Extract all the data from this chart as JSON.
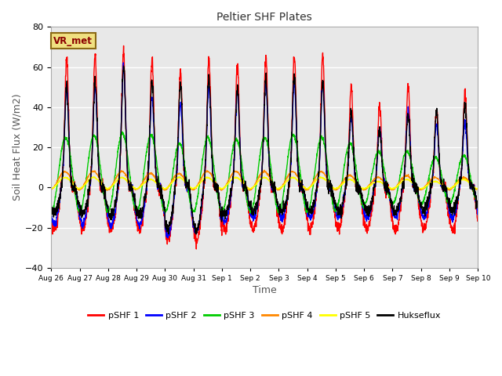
{
  "title": "Peltier SHF Plates",
  "xlabel": "Time",
  "ylabel": "Soil Heat Flux (W/m2)",
  "ylim": [
    -40,
    80
  ],
  "figure_bg": "#ffffff",
  "plot_bg_color": "#e8e8e8",
  "annotation_text": "VR_met",
  "annotation_bg": "#f0e080",
  "annotation_border": "#8B6914",
  "series": [
    {
      "label": "pSHF 1",
      "color": "#ff0000",
      "lw": 1.0
    },
    {
      "label": "pSHF 2",
      "color": "#0000ff",
      "lw": 1.0
    },
    {
      "label": "pSHF 3",
      "color": "#00cc00",
      "lw": 1.0
    },
    {
      "label": "pSHF 4",
      "color": "#ff8800",
      "lw": 1.0
    },
    {
      "label": "pSHF 5",
      "color": "#ffff00",
      "lw": 1.0
    },
    {
      "label": "Hukseflux",
      "color": "#000000",
      "lw": 1.0
    }
  ],
  "x_tick_labels": [
    "Aug 26",
    "Aug 27",
    "Aug 28",
    "Aug 29",
    "Aug 30",
    "Aug 31",
    "Sep 1",
    "Sep 2",
    "Sep 3",
    "Sep 4",
    "Sep 5",
    "Sep 6",
    "Sep 7",
    "Sep 8",
    "Sep 9",
    "Sep 10"
  ],
  "num_days": 15,
  "points_per_day": 144,
  "yticks": [
    -40,
    -20,
    0,
    20,
    40,
    60,
    80
  ],
  "day_peaks_pshf1": [
    65,
    67,
    68,
    64,
    58,
    65,
    62,
    65,
    66,
    66,
    51,
    41,
    51,
    39,
    47
  ],
  "day_troughs_pshf1": [
    -21,
    -21,
    -21,
    -21,
    -26,
    -27,
    -21,
    -21,
    -21,
    -21,
    -21,
    -21,
    -21,
    -21,
    -21
  ],
  "day_peaks_pshf2": [
    50,
    50,
    60,
    46,
    42,
    50,
    48,
    52,
    52,
    51,
    35,
    30,
    38,
    32,
    33
  ],
  "day_troughs_pshf2": [
    -18,
    -18,
    -19,
    -19,
    -24,
    -22,
    -17,
    -15,
    -15,
    -15,
    -15,
    -15,
    -15,
    -15,
    -15
  ],
  "day_peaks_pshf3": [
    25,
    26,
    27,
    26,
    22,
    25,
    24,
    25,
    26,
    25,
    22,
    18,
    18,
    15,
    16
  ],
  "day_troughs_pshf3": [
    -12,
    -12,
    -12,
    -12,
    -12,
    -12,
    -12,
    -12,
    -12,
    -12,
    -10,
    -8,
    -8,
    -8,
    -8
  ],
  "day_peaks_pshf4": [
    8,
    8,
    8,
    7,
    7,
    8,
    8,
    8,
    8,
    8,
    6,
    5,
    6,
    5,
    5
  ],
  "day_troughs_pshf4": [
    -1,
    -1,
    -1,
    -1,
    -1,
    -1,
    -1,
    -1,
    -1,
    -1,
    -1,
    -1,
    -1,
    -1,
    -1
  ],
  "day_peaks_pshf5": [
    5,
    5,
    5,
    4,
    5,
    5,
    5,
    5,
    5,
    5,
    4,
    3,
    4,
    3,
    4
  ],
  "day_troughs_pshf5": [
    -0.5,
    -0.5,
    -0.5,
    -0.5,
    -0.5,
    -0.5,
    -0.5,
    -0.5,
    -0.5,
    -0.5,
    -0.5,
    -0.5,
    -0.5,
    -0.5,
    -0.5
  ],
  "day_peaks_huksf": [
    50,
    52,
    60,
    52,
    52,
    55,
    49,
    54,
    56,
    53,
    37,
    28,
    36,
    38,
    42
  ],
  "day_troughs_huksf": [
    -13,
    -13,
    -14,
    -14,
    -21,
    -21,
    -13,
    -12,
    -12,
    -12,
    -12,
    -12,
    -12,
    -12,
    -12
  ]
}
